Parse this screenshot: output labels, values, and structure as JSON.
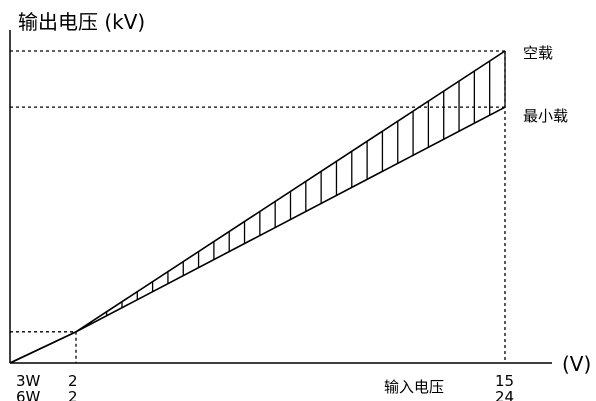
{
  "chart_data": {
    "type": "line",
    "ylabel": "输出电压 (kV)",
    "xlabel": "输入电压",
    "x_unit": "(V)",
    "x_tick_rows": [
      {
        "model": "3W",
        "values": [
          "2",
          "15"
        ]
      },
      {
        "model": "6W",
        "values": [
          "2",
          "24"
        ]
      }
    ],
    "x": [
      0,
      2,
      15
    ],
    "series": [
      {
        "name": "空载",
        "values": [
          0,
          0.1,
          1.0
        ]
      },
      {
        "name": "最小载",
        "values": [
          0,
          0.1,
          0.82
        ]
      }
    ],
    "ylim": [
      0,
      1.0
    ],
    "shaded_between_series": true,
    "legend": "right",
    "grid": false,
    "colors": {
      "axis": "#000000",
      "line": "#000000",
      "background": "#ffffff"
    }
  }
}
